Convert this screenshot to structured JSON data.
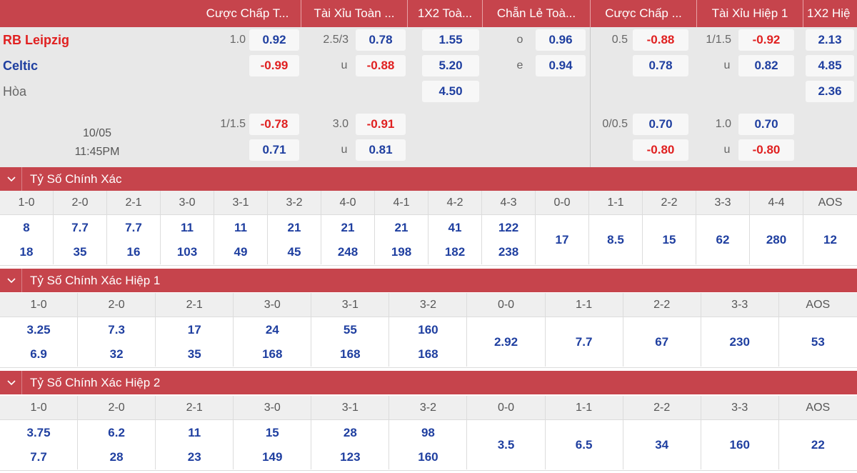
{
  "header": {
    "cols": [
      {
        "label": "Cược Chấp T..."
      },
      {
        "label": "Tài Xỉu Toàn ..."
      },
      {
        "label": "1X2 Toà..."
      },
      {
        "label": "Chẵn Lẻ Toà..."
      },
      {
        "label": "Cược Chấp ..."
      },
      {
        "label": "Tài Xỉu Hiệp 1"
      },
      {
        "label": "1X2 Hiệ"
      }
    ]
  },
  "match": {
    "home": "RB Leipzig",
    "away": "Celtic",
    "draw": "Hòa",
    "date": "10/05",
    "time": "11:45PM",
    "row1": {
      "hcap_line": "1.0",
      "hcap_odd": "0.92",
      "ou_line": "2.5/3",
      "ou_odd": "0.78",
      "x12": "1.55",
      "oe_label": "o",
      "oe_odd": "0.96",
      "h1_hcap_line": "0.5",
      "h1_hcap_odd": "-0.88",
      "h1_ou_line": "1/1.5",
      "h1_ou_odd": "-0.92",
      "h1_x12": "2.13"
    },
    "row2": {
      "hcap_odd": "-0.99",
      "ou_label": "u",
      "ou_odd": "-0.88",
      "x12": "5.20",
      "oe_label": "e",
      "oe_odd": "0.94",
      "h1_hcap_odd": "0.78",
      "h1_ou_label": "u",
      "h1_ou_odd": "0.82",
      "h1_x12": "4.85"
    },
    "row3": {
      "x12": "4.50",
      "h1_x12": "2.36"
    },
    "row4": {
      "hcap_line": "1/1.5",
      "hcap_odd": "-0.78",
      "ou_line": "3.0",
      "ou_odd": "-0.91",
      "h1_hcap_line": "0/0.5",
      "h1_hcap_odd": "0.70",
      "h1_ou_line": "1.0",
      "h1_ou_odd": "0.70"
    },
    "row5": {
      "hcap_odd": "0.71",
      "ou_label": "u",
      "ou_odd": "0.81",
      "h1_hcap_odd": "-0.80",
      "h1_ou_label": "u",
      "h1_ou_odd": "-0.80"
    }
  },
  "sections": [
    {
      "title": "Tỷ Số Chính Xác",
      "cells": [
        {
          "label": "1-0",
          "v1": "8",
          "v2": "18"
        },
        {
          "label": "2-0",
          "v1": "7.7",
          "v2": "35"
        },
        {
          "label": "2-1",
          "v1": "7.7",
          "v2": "16"
        },
        {
          "label": "3-0",
          "v1": "11",
          "v2": "103"
        },
        {
          "label": "3-1",
          "v1": "11",
          "v2": "49"
        },
        {
          "label": "3-2",
          "v1": "21",
          "v2": "45"
        },
        {
          "label": "4-0",
          "v1": "21",
          "v2": "248"
        },
        {
          "label": "4-1",
          "v1": "21",
          "v2": "198"
        },
        {
          "label": "4-2",
          "v1": "41",
          "v2": "182"
        },
        {
          "label": "4-3",
          "v1": "122",
          "v2": "238"
        },
        {
          "label": "0-0",
          "v1": "17",
          "v2": ""
        },
        {
          "label": "1-1",
          "v1": "8.5",
          "v2": ""
        },
        {
          "label": "2-2",
          "v1": "15",
          "v2": ""
        },
        {
          "label": "3-3",
          "v1": "62",
          "v2": ""
        },
        {
          "label": "4-4",
          "v1": "280",
          "v2": ""
        },
        {
          "label": "AOS",
          "v1": "12",
          "v2": ""
        }
      ]
    },
    {
      "title": "Tỷ Số Chính Xác Hiệp 1",
      "cells": [
        {
          "label": "1-0",
          "v1": "3.25",
          "v2": "6.9"
        },
        {
          "label": "2-0",
          "v1": "7.3",
          "v2": "32"
        },
        {
          "label": "2-1",
          "v1": "17",
          "v2": "35"
        },
        {
          "label": "3-0",
          "v1": "24",
          "v2": "168"
        },
        {
          "label": "3-1",
          "v1": "55",
          "v2": "168"
        },
        {
          "label": "3-2",
          "v1": "160",
          "v2": "168"
        },
        {
          "label": "0-0",
          "v1": "2.92",
          "v2": ""
        },
        {
          "label": "1-1",
          "v1": "7.7",
          "v2": ""
        },
        {
          "label": "2-2",
          "v1": "67",
          "v2": ""
        },
        {
          "label": "3-3",
          "v1": "230",
          "v2": ""
        },
        {
          "label": "AOS",
          "v1": "53",
          "v2": ""
        }
      ]
    },
    {
      "title": "Tỷ Số Chính Xác Hiệp 2",
      "cells": [
        {
          "label": "1-0",
          "v1": "3.75",
          "v2": "7.7"
        },
        {
          "label": "2-0",
          "v1": "6.2",
          "v2": "28"
        },
        {
          "label": "2-1",
          "v1": "11",
          "v2": "23"
        },
        {
          "label": "3-0",
          "v1": "15",
          "v2": "149"
        },
        {
          "label": "3-1",
          "v1": "28",
          "v2": "123"
        },
        {
          "label": "3-2",
          "v1": "98",
          "v2": "160"
        },
        {
          "label": "0-0",
          "v1": "3.5",
          "v2": ""
        },
        {
          "label": "1-1",
          "v1": "6.5",
          "v2": ""
        },
        {
          "label": "2-2",
          "v1": "34",
          "v2": ""
        },
        {
          "label": "3-3",
          "v1": "160",
          "v2": ""
        },
        {
          "label": "AOS",
          "v1": "22",
          "v2": ""
        }
      ]
    }
  ]
}
